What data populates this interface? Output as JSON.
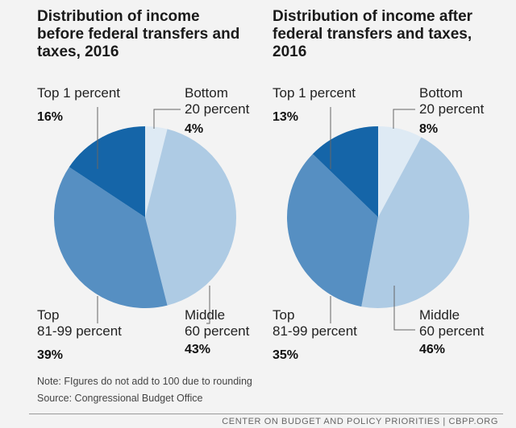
{
  "chart_data": [
    {
      "type": "pie",
      "title": "Distribution of income before federal transfers and taxes, 2016",
      "slices": [
        {
          "label": "Bottom\n20 percent",
          "value": 4,
          "display": "4%",
          "color": "#deeaf4"
        },
        {
          "label": "Middle\n60 percent",
          "value": 43,
          "display": "43%",
          "color": "#aecbe4"
        },
        {
          "label": "Top\n81-99 percent",
          "value": 39,
          "display": "39%",
          "color": "#568fc2"
        },
        {
          "label": "Top 1 percent",
          "value": 16,
          "display": "16%",
          "color": "#1565a8"
        }
      ]
    },
    {
      "type": "pie",
      "title": "Distribution of income after federal transfers and taxes, 2016",
      "slices": [
        {
          "label": "Bottom\n20 percent",
          "value": 8,
          "display": "8%",
          "color": "#deeaf4"
        },
        {
          "label": "Middle\n60 percent",
          "value": 46,
          "display": "46%",
          "color": "#aecbe4"
        },
        {
          "label": "Top\n81-99 percent",
          "value": 35,
          "display": "35%",
          "color": "#568fc2"
        },
        {
          "label": "Top 1 percent",
          "value": 13,
          "display": "13%",
          "color": "#1565a8"
        }
      ]
    }
  ],
  "titles": {
    "left": "Distribution of income\nbefore federal transfers and\ntaxes, 2016",
    "right": "Distribution of income after\nfederal transfers and taxes,\n2016"
  },
  "notes": {
    "note": "Note: FIgures do not add to 100 due to rounding",
    "source": "Source: Congressional Budget Office"
  },
  "footer": "CENTER ON BUDGET AND POLICY PRIORITIES | CBPP.ORG"
}
